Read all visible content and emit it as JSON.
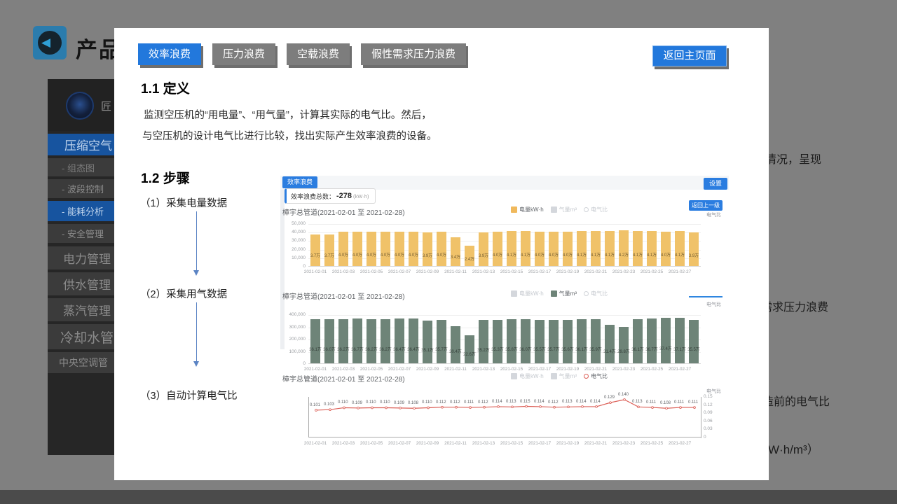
{
  "background": {
    "slide_title": "产品",
    "sidebar": {
      "logo_text": "匠",
      "items": [
        {
          "label": "压缩空气",
          "active": true
        },
        {
          "label": "- 组态图",
          "active": false
        },
        {
          "label": "- 波段控制",
          "active": false
        },
        {
          "label": "- 能耗分析",
          "active": true
        },
        {
          "label": "- 安全管理",
          "active": false
        },
        {
          "label": "电力管理",
          "active": false
        },
        {
          "label": "供水管理",
          "active": false
        },
        {
          "label": "蒸汽管理",
          "active": false
        },
        {
          "label": "冷却水管",
          "active": false
        },
        {
          "label": "中央空调管",
          "active": false
        }
      ]
    },
    "right_text_fragments": [
      "情况，呈现",
      "需求压力浪费",
      "造前的电气比",
      "W·h/m³）"
    ]
  },
  "panel": {
    "tabs": [
      {
        "label": "效率浪费",
        "active": true
      },
      {
        "label": "压力浪费",
        "active": false
      },
      {
        "label": "空载浪费",
        "active": false
      },
      {
        "label": "假性需求压力浪费",
        "active": false
      }
    ],
    "back_button": "返回主页面",
    "def_heading": "1.1 定义",
    "def_line1": "监测空压机的“用电量”、“用气量”，计算其实际的电气比。然后，",
    "def_line2": "与空压机的设计电气比进行比较，找出实际产生效率浪费的设备。",
    "steps_heading": "1.2 步骤",
    "steps": [
      "（1）采集电量数据",
      "（2）采集用气数据",
      "（3）自动计算电气比"
    ]
  },
  "dashboard": {
    "badge": "效率浪费",
    "settings_button": "设置",
    "result_label": "效率浪费总数：",
    "result_value": "-278",
    "result_unit": "(kW·h)",
    "back_level_button": "返回上一级",
    "right_axis_label": "电气比"
  },
  "chart_data": [
    {
      "type": "bar",
      "title": "樟宇总管道(2021-02-01 至 2021-02-28)",
      "bar_color": "#f0c269",
      "ymax": 50000,
      "yticks": [
        "50,000",
        "40,000",
        "30,000",
        "20,000",
        "10,000",
        "0"
      ],
      "legend": [
        {
          "label": "电量kW·h",
          "shape": "square",
          "color": "#f0b95c",
          "active": true
        },
        {
          "label": "气量m³",
          "shape": "square",
          "color": "#d4d7dc",
          "active": false
        },
        {
          "label": "电气比",
          "shape": "circle",
          "color": "#d0d3d8",
          "active": false
        }
      ],
      "categories": [
        "2021-02-01",
        "2021-02-02",
        "2021-02-03",
        "2021-02-04",
        "2021-02-05",
        "2021-02-06",
        "2021-02-07",
        "2021-02-08",
        "2021-02-09",
        "2021-02-10",
        "2021-02-11",
        "2021-02-12",
        "2021-02-13",
        "2021-02-14",
        "2021-02-15",
        "2021-02-16",
        "2021-02-17",
        "2021-02-18",
        "2021-02-19",
        "2021-02-20",
        "2021-02-21",
        "2021-02-22",
        "2021-02-23",
        "2021-02-24",
        "2021-02-25",
        "2021-02-26",
        "2021-02-27",
        "2021-02-28"
      ],
      "values": [
        37000,
        37000,
        40000,
        40000,
        40000,
        40000,
        40000,
        40000,
        39000,
        40000,
        34000,
        24000,
        39000,
        40000,
        41000,
        41000,
        40000,
        40000,
        40000,
        41000,
        41000,
        41000,
        42000,
        41000,
        41000,
        40000,
        41000,
        39000
      ],
      "bar_labels": [
        "3.7万",
        "3.7万",
        "4.0万",
        "4.0万",
        "4.0万",
        "4.0万",
        "4.0万",
        "4.0万",
        "3.9万",
        "4.0万",
        "3.4万",
        "2.4万",
        "3.9万",
        "4.0万",
        "4.1万",
        "4.1万",
        "4.0万",
        "4.0万",
        "4.0万",
        "4.1万",
        "4.1万",
        "4.1万",
        "4.2万",
        "4.1万",
        "4.1万",
        "4.0万",
        "4.1万",
        "3.9万"
      ],
      "x_ticks": [
        "2021-02-01",
        "2021-02-03",
        "2021-02-05",
        "2021-02-07",
        "2021-02-09",
        "2021-02-11",
        "2021-02-13",
        "2021-02-15",
        "2021-02-17",
        "2021-02-19",
        "2021-02-21",
        "2021-02-23",
        "2021-02-25",
        "2021-02-27"
      ],
      "right_axis_label": "电气比"
    },
    {
      "type": "bar",
      "title": "樟宇总管道(2021-02-01 至 2021-02-28)",
      "bar_color": "#6e8478",
      "ymax": 400000,
      "yticks": [
        "400,000",
        "300,000",
        "200,000",
        "100,000",
        "0"
      ],
      "legend": [
        {
          "label": "电量kW·h",
          "shape": "square",
          "color": "#d4d7dc",
          "active": false
        },
        {
          "label": "气量m³",
          "shape": "square",
          "color": "#6e8478",
          "active": true
        },
        {
          "label": "电气比",
          "shape": "circle",
          "color": "#d0d3d8",
          "active": false
        }
      ],
      "categories": [
        "2021-02-01",
        "2021-02-02",
        "2021-02-03",
        "2021-02-04",
        "2021-02-05",
        "2021-02-06",
        "2021-02-07",
        "2021-02-08",
        "2021-02-09",
        "2021-02-10",
        "2021-02-11",
        "2021-02-12",
        "2021-02-13",
        "2021-02-14",
        "2021-02-15",
        "2021-02-16",
        "2021-02-17",
        "2021-02-18",
        "2021-02-19",
        "2021-02-20",
        "2021-02-21",
        "2021-02-22",
        "2021-02-23",
        "2021-02-24",
        "2021-02-25",
        "2021-02-26",
        "2021-02-27",
        "2021-02-28"
      ],
      "values": [
        361000,
        360000,
        362000,
        367000,
        362000,
        362000,
        364000,
        364000,
        351000,
        357000,
        304000,
        226000,
        352000,
        353000,
        358000,
        360000,
        355000,
        357000,
        356000,
        361000,
        359000,
        314000,
        298000,
        361000,
        367000,
        374000,
        371000,
        355000
      ],
      "bar_labels": [
        "36.1万",
        "36.0万",
        "36.2万",
        "36.7万",
        "36.2万",
        "36.2万",
        "36.4万",
        "36.4万",
        "35.1万",
        "35.7万",
        "30.4万",
        "22.6万",
        "35.2万",
        "35.3万",
        "35.8万",
        "36.0万",
        "35.5万",
        "35.7万",
        "35.6万",
        "36.1万",
        "35.9万",
        "31.4万",
        "29.8万",
        "36.1万",
        "36.7万",
        "37.4万",
        "37.1万",
        "35.5万"
      ],
      "x_ticks": [
        "2021-02-01",
        "2021-02-03",
        "2021-02-05",
        "2021-02-07",
        "2021-02-09",
        "2021-02-11",
        "2021-02-13",
        "2021-02-15",
        "2021-02-17",
        "2021-02-19",
        "2021-02-21",
        "2021-02-23",
        "2021-02-25",
        "2021-02-27"
      ],
      "right_axis_label": "电气比"
    },
    {
      "type": "line",
      "title": "樟宇总管道(2021-02-01 至 2021-02-28)",
      "line_color": "#dc5f57",
      "ymax": 0.15,
      "yticks_right": [
        "0.15",
        "0.12",
        "0.09",
        "0.06",
        "0.03",
        "0"
      ],
      "legend": [
        {
          "label": "电量kW·h",
          "shape": "square",
          "color": "#d4d7dc",
          "active": false
        },
        {
          "label": "气量m³",
          "shape": "square",
          "color": "#d4d7dc",
          "active": false
        },
        {
          "label": "电气比",
          "shape": "circle",
          "color": "#dc5f57",
          "active": true
        }
      ],
      "categories": [
        "2021-02-01",
        "2021-02-02",
        "2021-02-03",
        "2021-02-04",
        "2021-02-05",
        "2021-02-06",
        "2021-02-07",
        "2021-02-08",
        "2021-02-09",
        "2021-02-10",
        "2021-02-11",
        "2021-02-12",
        "2021-02-13",
        "2021-02-14",
        "2021-02-15",
        "2021-02-16",
        "2021-02-17",
        "2021-02-18",
        "2021-02-19",
        "2021-02-20",
        "2021-02-21",
        "2021-02-22",
        "2021-02-23",
        "2021-02-24",
        "2021-02-25",
        "2021-02-26",
        "2021-02-27",
        "2021-02-28"
      ],
      "values": [
        0.101,
        0.103,
        0.11,
        0.109,
        0.11,
        0.11,
        0.109,
        0.108,
        0.11,
        0.112,
        0.112,
        0.111,
        0.112,
        0.114,
        0.113,
        0.115,
        0.114,
        0.112,
        0.113,
        0.114,
        0.114,
        0.129,
        0.14,
        0.113,
        0.111,
        0.108,
        0.111,
        0.111
      ],
      "point_labels": [
        "0.101",
        "0.103",
        "0.110",
        "0.109",
        "0.110",
        "0.110",
        "0.109",
        "0.108",
        "0.110",
        "0.112",
        "0.112",
        "0.111",
        "0.112",
        "0.114",
        "0.113",
        "0.115",
        "0.114",
        "0.112",
        "0.113",
        "0.114",
        "0.114",
        "0.129",
        "0.140",
        "0.113",
        "0.111",
        "0.108",
        "0.111",
        "0.111"
      ],
      "x_ticks": [
        "2021-02-01",
        "2021-02-03",
        "2021-02-05",
        "2021-02-07",
        "2021-02-09",
        "2021-02-11",
        "2021-02-13",
        "2021-02-15",
        "2021-02-17",
        "2021-02-19",
        "2021-02-21",
        "2021-02-23",
        "2021-02-25",
        "2021-02-27"
      ],
      "right_axis_label": "电气比"
    }
  ]
}
